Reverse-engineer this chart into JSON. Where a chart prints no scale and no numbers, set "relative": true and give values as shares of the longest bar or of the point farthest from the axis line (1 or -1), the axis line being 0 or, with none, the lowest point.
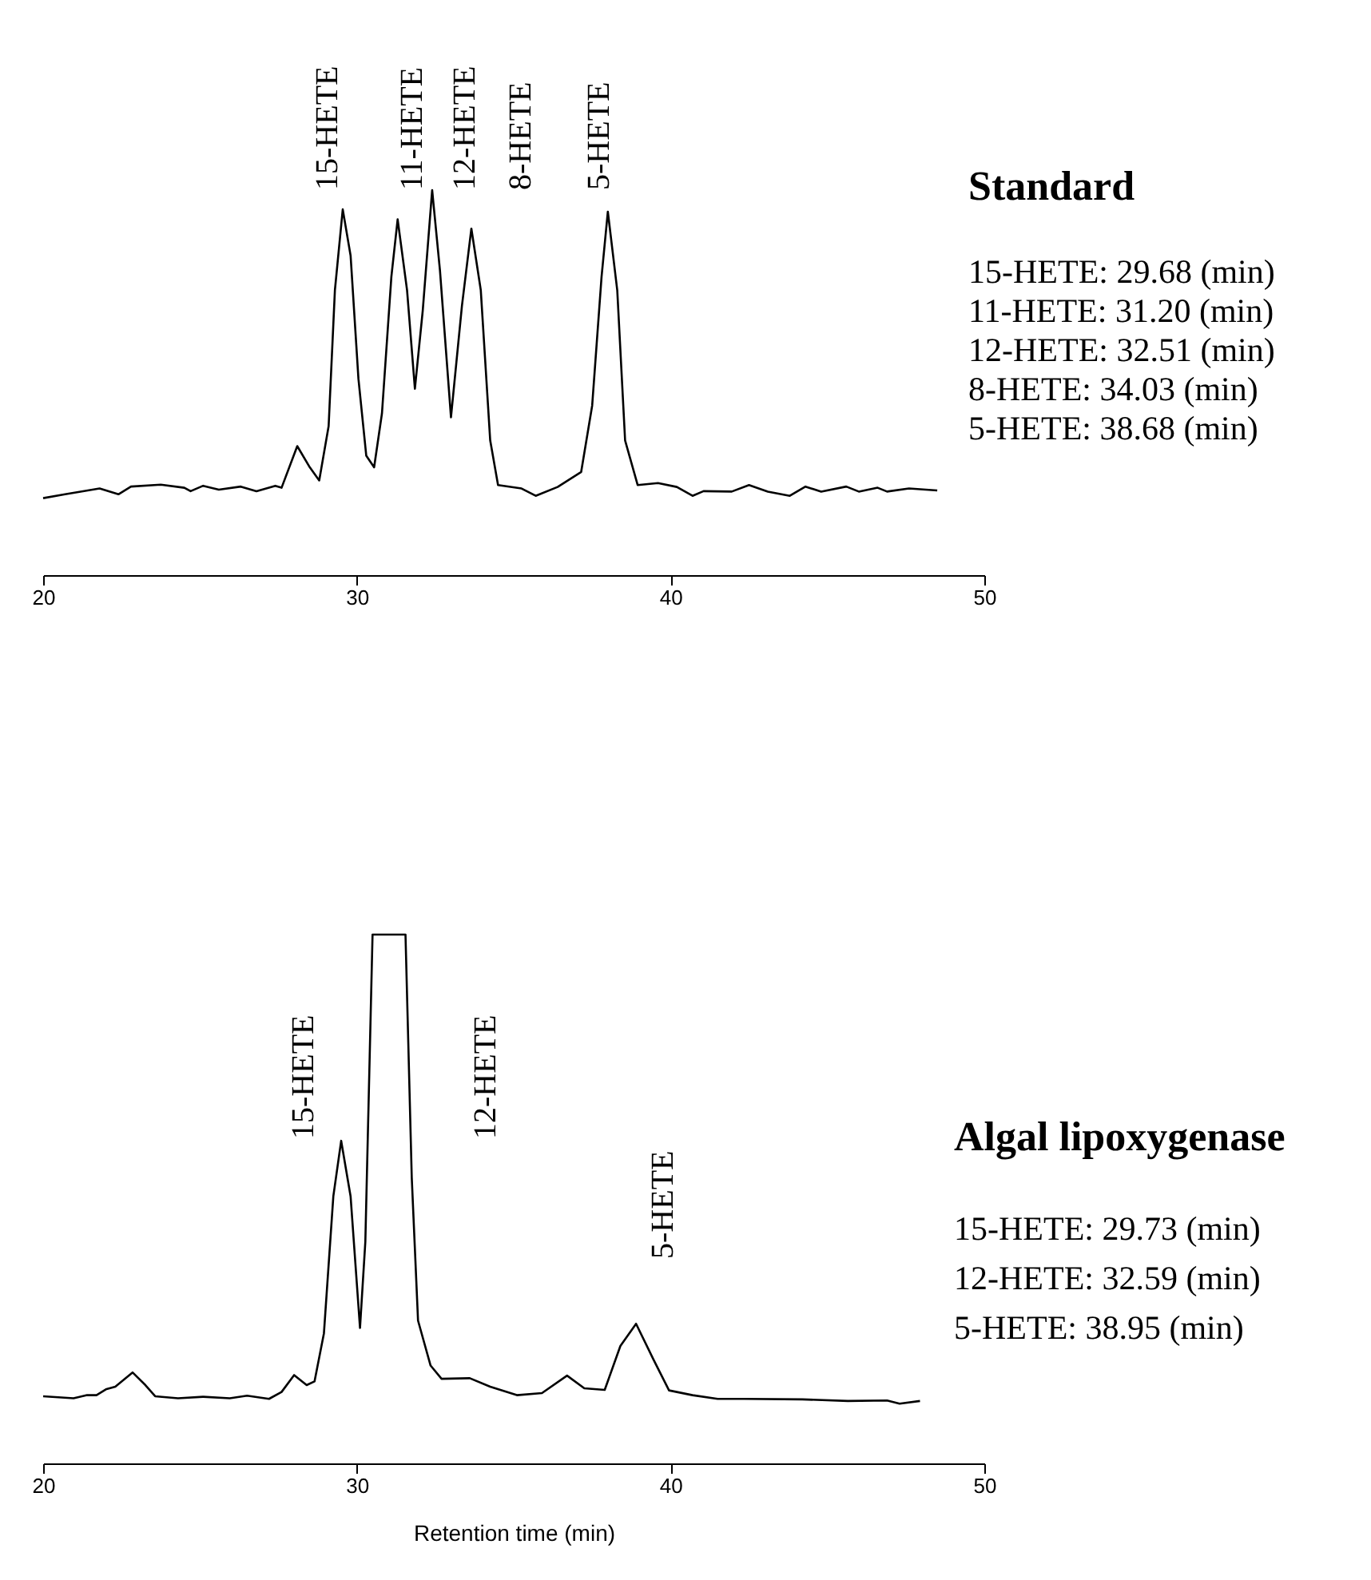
{
  "chart_data": [
    {
      "type": "line",
      "title": "Standard",
      "relative": true,
      "xlim": [
        20,
        50
      ],
      "xticks": [
        20,
        30,
        40,
        50
      ],
      "grid": false,
      "series": [
        {
          "color": "#000000",
          "x": [
            20,
            20.7,
            21.8,
            22.4,
            22.8,
            23.75,
            24.5,
            24.7,
            25.1,
            25.6,
            26.3,
            26.8,
            27.4,
            27.6,
            28.1,
            28.5,
            28.8,
            29.1,
            29.3,
            29.55,
            29.8,
            30.05,
            30.3,
            30.55,
            30.8,
            31.1,
            31.3,
            31.6,
            31.85,
            32.1,
            32.4,
            32.65,
            33.0,
            33.35,
            33.65,
            33.95,
            34.25,
            34.5,
            35.25,
            35.7,
            36.4,
            37.15,
            37.5,
            37.8,
            38.0,
            38.3,
            38.55,
            38.95,
            39.6,
            40.2,
            40.7,
            41.05,
            41.95,
            42.5,
            43.1,
            43.8,
            44.3,
            44.8,
            45.6,
            46.0,
            46.6,
            46.9,
            47.6,
            48.5
          ],
          "values": [
            0.2,
            0.21,
            0.225,
            0.21,
            0.23,
            0.235,
            0.227,
            0.218,
            0.232,
            0.222,
            0.23,
            0.218,
            0.232,
            0.227,
            0.335,
            0.28,
            0.246,
            0.387,
            0.74,
            0.95,
            0.83,
            0.51,
            0.31,
            0.28,
            0.42,
            0.775,
            0.924,
            0.74,
            0.484,
            0.687,
            1.0,
            0.79,
            0.41,
            0.7,
            0.9,
            0.74,
            0.35,
            0.234,
            0.225,
            0.206,
            0.229,
            0.268,
            0.44,
            0.775,
            0.944,
            0.74,
            0.35,
            0.234,
            0.239,
            0.229,
            0.206,
            0.218,
            0.217,
            0.234,
            0.217,
            0.206,
            0.23,
            0.217,
            0.23,
            0.217,
            0.227,
            0.217,
            0.225,
            0.22
          ]
        }
      ],
      "annotations": [
        "15-HETE",
        "11-HETE",
        "12-HETE",
        "8-HETE",
        "5-HETE",
        "15-HETE: 29.68 (min)",
        "11-HETE: 31.20 (min)",
        "12-HETE: 32.51 (min)",
        "8-HETE: 34.03 (min)",
        "5-HETE: 38.68 (min)"
      ]
    },
    {
      "type": "line",
      "title": "Algal lipoxygenase",
      "relative": true,
      "xlabel": "Retention time (min)",
      "xlim": [
        20,
        50
      ],
      "xticks": [
        20,
        30,
        40,
        50
      ],
      "grid": false,
      "series": [
        {
          "color": "#000000",
          "x": [
            20,
            20.97,
            21.4,
            21.7,
            22.0,
            22.3,
            22.85,
            23.26,
            23.57,
            24.3,
            25.1,
            25.95,
            26.5,
            27.2,
            27.6,
            28.0,
            28.4,
            28.65,
            28.95,
            29.25,
            29.5,
            29.8,
            30.1,
            30.27,
            30.5,
            31.55,
            31.75,
            31.95,
            32.35,
            32.7,
            33.6,
            34.25,
            35.1,
            35.9,
            36.7,
            37.25,
            37.9,
            38.4,
            38.9,
            39.45,
            39.95,
            40.7,
            41.5,
            42.35,
            44.2,
            45.65,
            46.9,
            47.3,
            47.95
          ],
          "values": [
            0.127,
            0.123,
            0.129,
            0.129,
            0.14,
            0.145,
            0.172,
            0.148,
            0.127,
            0.123,
            0.126,
            0.123,
            0.128,
            0.122,
            0.135,
            0.167,
            0.148,
            0.155,
            0.246,
            0.505,
            0.61,
            0.505,
            0.256,
            0.419,
            1,
            1,
            0.54,
            0.27,
            0.185,
            0.16,
            0.161,
            0.145,
            0.129,
            0.133,
            0.166,
            0.142,
            0.139,
            0.222,
            0.264,
            0.197,
            0.138,
            0.129,
            0.122,
            0.122,
            0.121,
            0.118,
            0.119,
            0.113,
            0.118
          ]
        }
      ],
      "annotations": [
        "15-HETE",
        "12-HETE",
        "5-HETE",
        "15-HETE: 29.73 (min)",
        "12-HETE: 32.59 (min)",
        "5-HETE: 38.95 (min)"
      ]
    }
  ]
}
